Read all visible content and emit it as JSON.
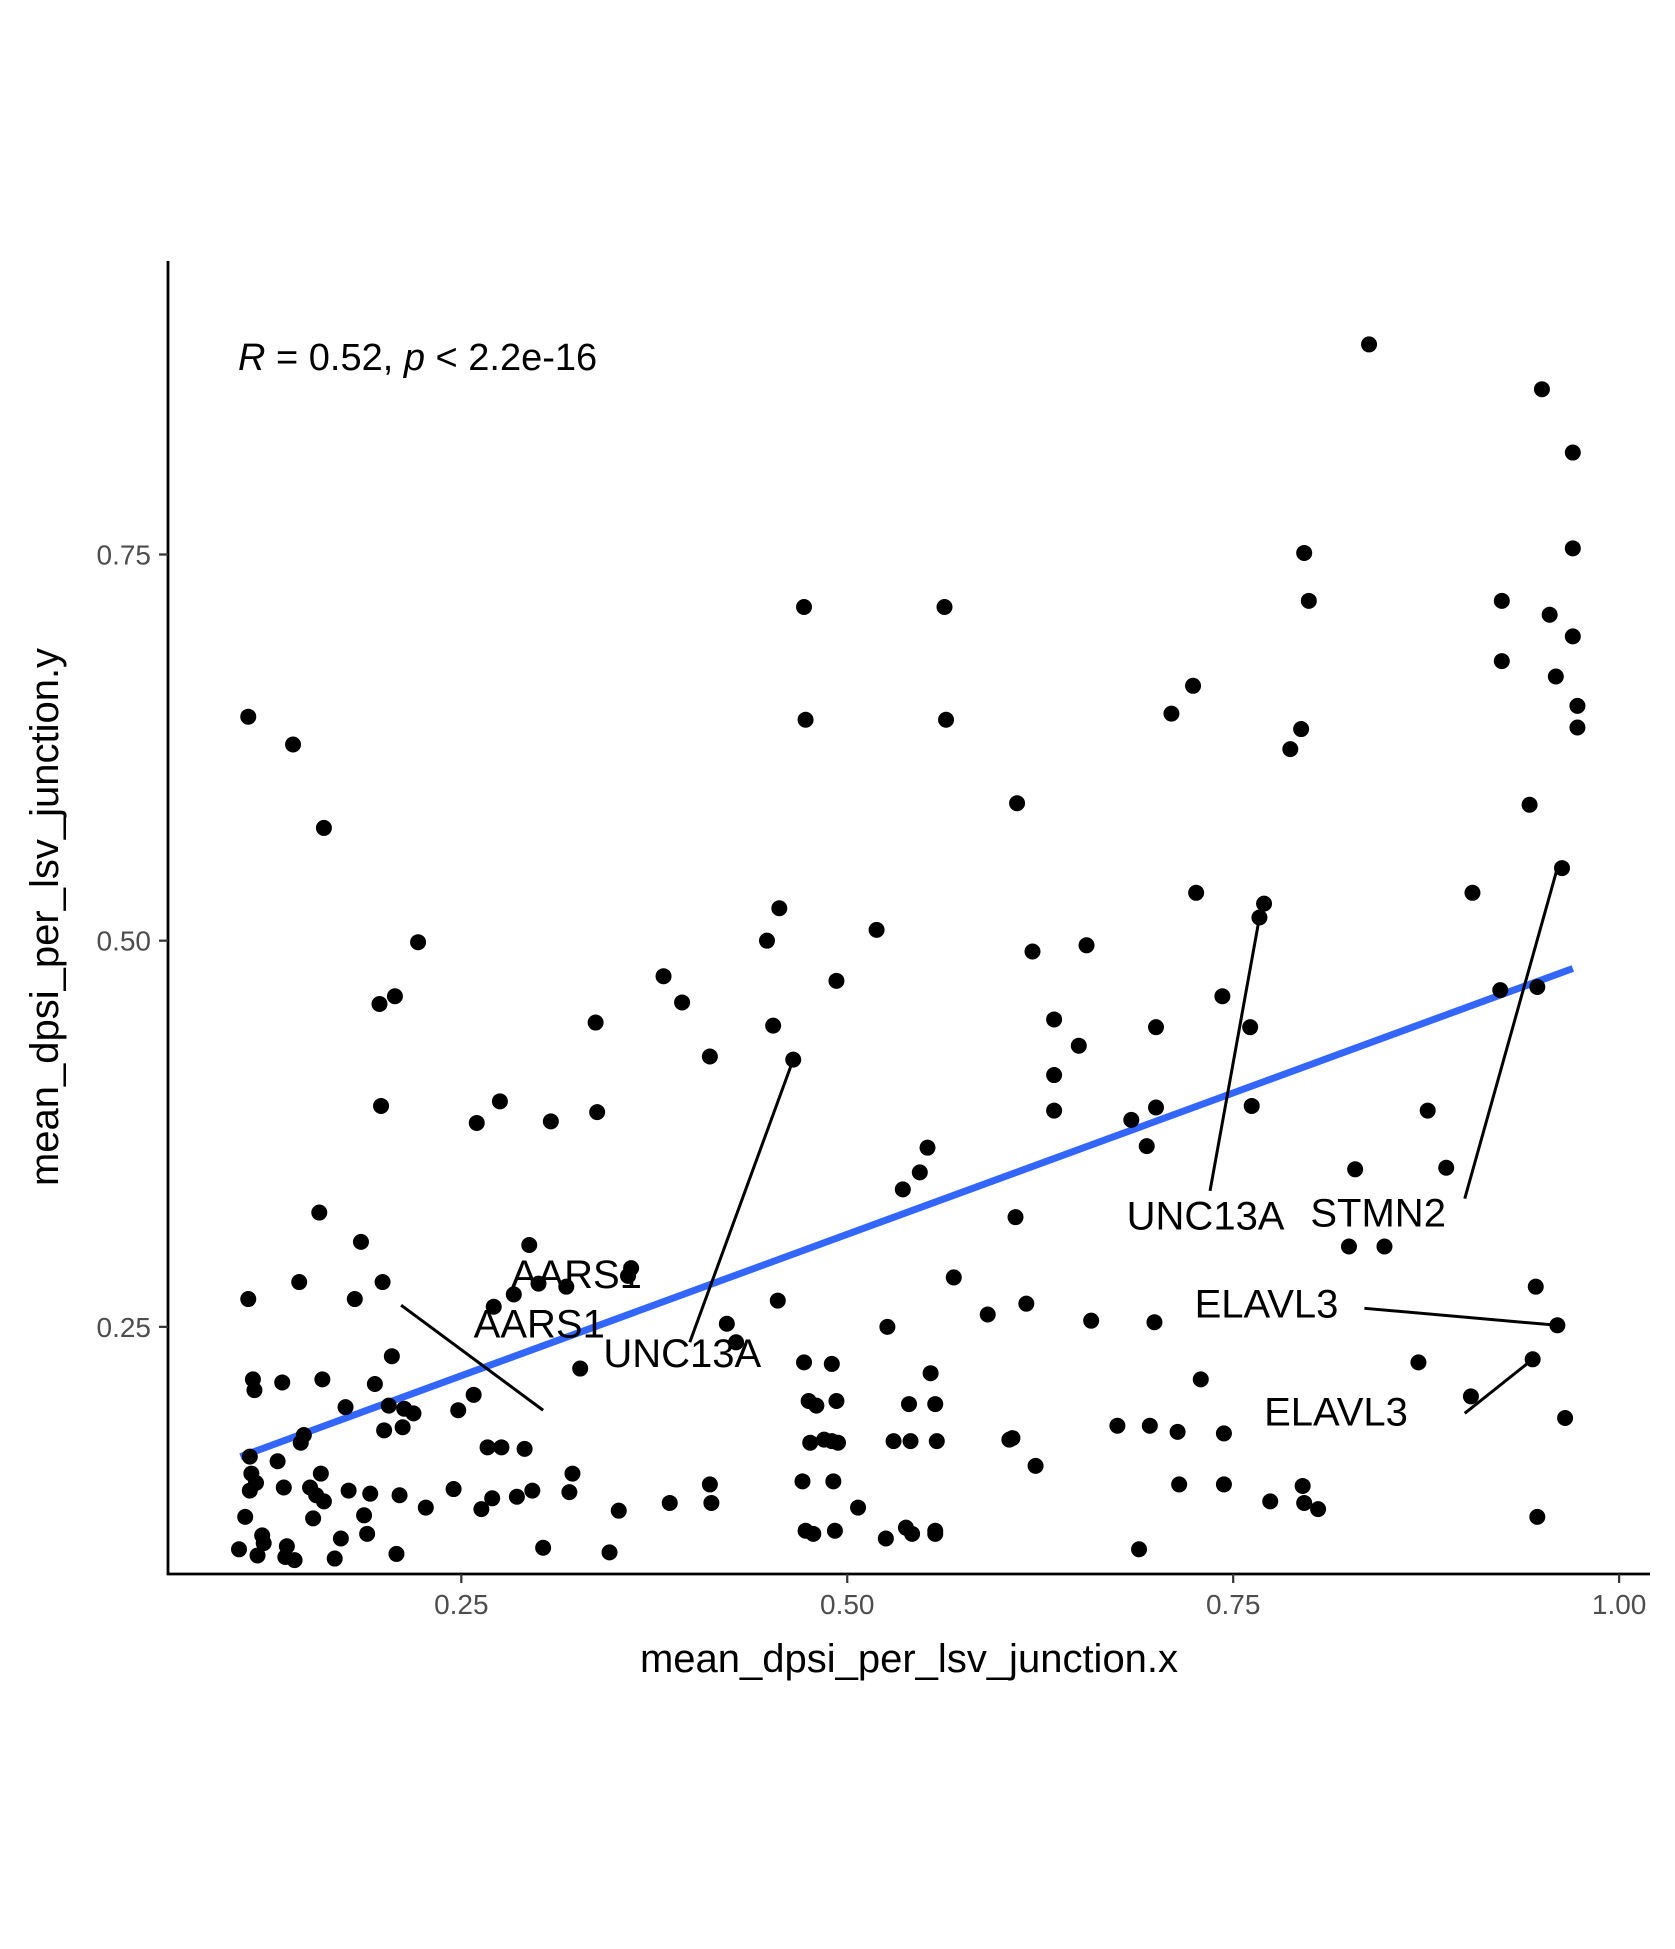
{
  "chart_data": {
    "type": "scatter",
    "xlabel": "mean_dpsi_per_lsv_junction.x",
    "ylabel": "mean_dpsi_per_lsv_junction.y",
    "xlim": [
      0.06,
      1.02
    ],
    "ylim": [
      0.09,
      0.94
    ],
    "x_ticks": [
      "0.25",
      "0.50",
      "0.75",
      "1.00"
    ],
    "y_ticks": [
      "0.25",
      "0.50",
      "0.75"
    ],
    "grid": false,
    "annotation": {
      "R_symbol": "R",
      "R_text": " = 0.52, ",
      "p_symbol": "p",
      "p_text": " < 2.2e-16"
    },
    "trend_line": {
      "x": [
        0.107,
        0.97
      ],
      "y": [
        0.166,
        0.482
      ],
      "color": "#3366FF"
    },
    "labels": [
      {
        "text": "AARS1",
        "x": 0.211,
        "y": 0.264,
        "tx": 0.258,
        "ty": 0.243,
        "lx": 0.303,
        "ly": 0.196
      },
      {
        "text": "AARS1",
        "x": 0.202,
        "y": 0.199,
        "tx": 0.282,
        "ty": 0.275,
        "lx": null,
        "ly": null
      },
      {
        "text": "UNC13A",
        "x": 0.465,
        "y": 0.423,
        "tx": 0.342,
        "ty": 0.224,
        "lx": 0.398,
        "ly": 0.24
      },
      {
        "text": "UNC13A",
        "x": 0.767,
        "y": 0.515,
        "tx": 0.681,
        "ty": 0.313,
        "lx": 0.735,
        "ly": 0.338
      },
      {
        "text": "STMN2",
        "x": 0.96,
        "y": 0.547,
        "tx": 0.8,
        "ty": 0.315,
        "lx": 0.9,
        "ly": 0.333
      },
      {
        "text": "ELAVL3",
        "x": 0.96,
        "y": 0.251,
        "tx": 0.725,
        "ty": 0.256,
        "lx": 0.835,
        "ly": 0.262
      },
      {
        "text": "ELAVL3",
        "x": 0.944,
        "y": 0.229,
        "tx": 0.77,
        "ty": 0.186,
        "lx": 0.9,
        "ly": 0.194
      }
    ],
    "points": [
      [
        0.106,
        0.106
      ],
      [
        0.11,
        0.127
      ],
      [
        0.112,
        0.268
      ],
      [
        0.112,
        0.645
      ],
      [
        0.113,
        0.166
      ],
      [
        0.114,
        0.155
      ],
      [
        0.113,
        0.144
      ],
      [
        0.115,
        0.216
      ],
      [
        0.116,
        0.209
      ],
      [
        0.117,
        0.149
      ],
      [
        0.118,
        0.102
      ],
      [
        0.121,
        0.115
      ],
      [
        0.122,
        0.11
      ],
      [
        0.131,
        0.163
      ],
      [
        0.134,
        0.214
      ],
      [
        0.135,
        0.146
      ],
      [
        0.136,
        0.101
      ],
      [
        0.137,
        0.108
      ],
      [
        0.141,
        0.627
      ],
      [
        0.142,
        0.099
      ],
      [
        0.145,
        0.279
      ],
      [
        0.146,
        0.175
      ],
      [
        0.148,
        0.18
      ],
      [
        0.152,
        0.146
      ],
      [
        0.154,
        0.126
      ],
      [
        0.156,
        0.141
      ],
      [
        0.158,
        0.324
      ],
      [
        0.16,
        0.216
      ],
      [
        0.159,
        0.155
      ],
      [
        0.161,
        0.573
      ],
      [
        0.161,
        0.137
      ],
      [
        0.168,
        0.1
      ],
      [
        0.172,
        0.113
      ],
      [
        0.175,
        0.198
      ],
      [
        0.177,
        0.144
      ],
      [
        0.181,
        0.268
      ],
      [
        0.185,
        0.305
      ],
      [
        0.187,
        0.128
      ],
      [
        0.189,
        0.116
      ],
      [
        0.191,
        0.142
      ],
      [
        0.194,
        0.213
      ],
      [
        0.197,
        0.459
      ],
      [
        0.198,
        0.393
      ],
      [
        0.199,
        0.279
      ],
      [
        0.2,
        0.183
      ],
      [
        0.203,
        0.199
      ],
      [
        0.205,
        0.231
      ],
      [
        0.207,
        0.464
      ],
      [
        0.208,
        0.103
      ],
      [
        0.21,
        0.141
      ],
      [
        0.212,
        0.185
      ],
      [
        0.213,
        0.197
      ],
      [
        0.219,
        0.194
      ],
      [
        0.222,
        0.499
      ],
      [
        0.227,
        0.133
      ],
      [
        0.245,
        0.145
      ],
      [
        0.248,
        0.196
      ],
      [
        0.258,
        0.206
      ],
      [
        0.26,
        0.382
      ],
      [
        0.263,
        0.132
      ],
      [
        0.267,
        0.172
      ],
      [
        0.27,
        0.139
      ],
      [
        0.271,
        0.263
      ],
      [
        0.275,
        0.396
      ],
      [
        0.276,
        0.172
      ],
      [
        0.284,
        0.271
      ],
      [
        0.286,
        0.14
      ],
      [
        0.291,
        0.171
      ],
      [
        0.294,
        0.303
      ],
      [
        0.296,
        0.144
      ],
      [
        0.3,
        0.278
      ],
      [
        0.303,
        0.107
      ],
      [
        0.308,
        0.383
      ],
      [
        0.318,
        0.276
      ],
      [
        0.32,
        0.143
      ],
      [
        0.322,
        0.155
      ],
      [
        0.327,
        0.223
      ],
      [
        0.337,
        0.447
      ],
      [
        0.338,
        0.389
      ],
      [
        0.346,
        0.104
      ],
      [
        0.352,
        0.131
      ],
      [
        0.358,
        0.283
      ],
      [
        0.36,
        0.288
      ],
      [
        0.381,
        0.477
      ],
      [
        0.385,
        0.136
      ],
      [
        0.393,
        0.46
      ],
      [
        0.411,
        0.425
      ],
      [
        0.411,
        0.148
      ],
      [
        0.412,
        0.136
      ],
      [
        0.422,
        0.252
      ],
      [
        0.428,
        0.24
      ],
      [
        0.448,
        0.5
      ],
      [
        0.452,
        0.445
      ],
      [
        0.455,
        0.267
      ],
      [
        0.456,
        0.521
      ],
      [
        0.465,
        0.423
      ],
      [
        0.472,
        0.716
      ],
      [
        0.473,
        0.643
      ],
      [
        0.472,
        0.227
      ],
      [
        0.471,
        0.15
      ],
      [
        0.473,
        0.118
      ],
      [
        0.475,
        0.202
      ],
      [
        0.476,
        0.175
      ],
      [
        0.478,
        0.116
      ],
      [
        0.48,
        0.199
      ],
      [
        0.485,
        0.177
      ],
      [
        0.49,
        0.176
      ],
      [
        0.49,
        0.226
      ],
      [
        0.491,
        0.15
      ],
      [
        0.492,
        0.118
      ],
      [
        0.493,
        0.202
      ],
      [
        0.494,
        0.175
      ],
      [
        0.493,
        0.474
      ],
      [
        0.507,
        0.133
      ],
      [
        0.519,
        0.507
      ],
      [
        0.525,
        0.113
      ],
      [
        0.526,
        0.25
      ],
      [
        0.53,
        0.176
      ],
      [
        0.536,
        0.339
      ],
      [
        0.538,
        0.12
      ],
      [
        0.54,
        0.2
      ],
      [
        0.541,
        0.176
      ],
      [
        0.542,
        0.116
      ],
      [
        0.547,
        0.35
      ],
      [
        0.552,
        0.366
      ],
      [
        0.554,
        0.22
      ],
      [
        0.557,
        0.118
      ],
      [
        0.557,
        0.2
      ],
      [
        0.558,
        0.176
      ],
      [
        0.557,
        0.116
      ],
      [
        0.563,
        0.716
      ],
      [
        0.564,
        0.643
      ],
      [
        0.569,
        0.282
      ],
      [
        0.591,
        0.258
      ],
      [
        0.605,
        0.177
      ],
      [
        0.607,
        0.178
      ],
      [
        0.609,
        0.321
      ],
      [
        0.61,
        0.589
      ],
      [
        0.616,
        0.265
      ],
      [
        0.62,
        0.493
      ],
      [
        0.622,
        0.16
      ],
      [
        0.634,
        0.449
      ],
      [
        0.634,
        0.413
      ],
      [
        0.634,
        0.39
      ],
      [
        0.65,
        0.432
      ],
      [
        0.655,
        0.497
      ],
      [
        0.658,
        0.254
      ],
      [
        0.675,
        0.186
      ],
      [
        0.684,
        0.384
      ],
      [
        0.689,
        0.106
      ],
      [
        0.694,
        0.367
      ],
      [
        0.696,
        0.186
      ],
      [
        0.699,
        0.253
      ],
      [
        0.7,
        0.444
      ],
      [
        0.7,
        0.392
      ],
      [
        0.71,
        0.647
      ],
      [
        0.714,
        0.182
      ],
      [
        0.715,
        0.148
      ],
      [
        0.724,
        0.665
      ],
      [
        0.726,
        0.531
      ],
      [
        0.729,
        0.216
      ],
      [
        0.743,
        0.464
      ],
      [
        0.744,
        0.181
      ],
      [
        0.744,
        0.148
      ],
      [
        0.761,
        0.444
      ],
      [
        0.762,
        0.393
      ],
      [
        0.77,
        0.524
      ],
      [
        0.767,
        0.515
      ],
      [
        0.774,
        0.137
      ],
      [
        0.787,
        0.624
      ],
      [
        0.794,
        0.637
      ],
      [
        0.796,
        0.751
      ],
      [
        0.799,
        0.72
      ],
      [
        0.795,
        0.147
      ],
      [
        0.796,
        0.136
      ],
      [
        0.805,
        0.132
      ],
      [
        0.825,
        0.302
      ],
      [
        0.829,
        0.352
      ],
      [
        0.838,
        0.886
      ],
      [
        0.848,
        0.302
      ],
      [
        0.87,
        0.227
      ],
      [
        0.876,
        0.39
      ],
      [
        0.888,
        0.353
      ],
      [
        0.904,
        0.205
      ],
      [
        0.905,
        0.531
      ],
      [
        0.923,
        0.468
      ],
      [
        0.924,
        0.72
      ],
      [
        0.924,
        0.681
      ],
      [
        0.942,
        0.588
      ],
      [
        0.944,
        0.229
      ],
      [
        0.946,
        0.276
      ],
      [
        0.947,
        0.47
      ],
      [
        0.947,
        0.127
      ],
      [
        0.95,
        0.857
      ],
      [
        0.955,
        0.711
      ],
      [
        0.959,
        0.671
      ],
      [
        0.963,
        0.547
      ],
      [
        0.96,
        0.251
      ],
      [
        0.965,
        0.191
      ],
      [
        0.97,
        0.816
      ],
      [
        0.97,
        0.754
      ],
      [
        0.97,
        0.697
      ],
      [
        0.973,
        0.652
      ],
      [
        0.973,
        0.638
      ]
    ]
  }
}
